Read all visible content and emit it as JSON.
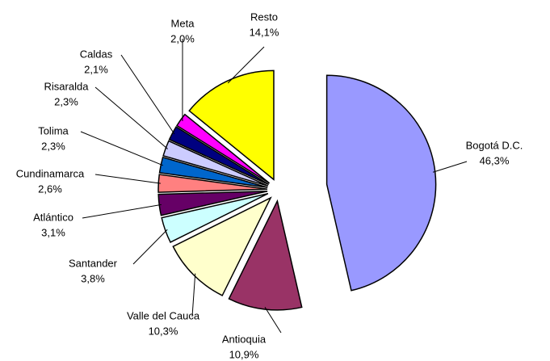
{
  "chart_data": {
    "type": "pie",
    "categories": [
      "Bogotá D.C.",
      "Antioquia",
      "Valle del Cauca",
      "Santander",
      "Atlántico",
      "Cundinamarca",
      "Tolima",
      "Risaralda",
      "Caldas",
      "Meta",
      "Resto"
    ],
    "values": [
      46.3,
      10.9,
      10.3,
      3.8,
      3.1,
      2.6,
      2.3,
      2.3,
      2.1,
      2.0,
      14.1
    ],
    "value_labels": [
      "46,3%",
      "10,9%",
      "10,3%",
      "3,8%",
      "3,1%",
      "2,6%",
      "2,3%",
      "2,3%",
      "2,1%",
      "2,0%",
      "14,1%"
    ],
    "colors": [
      "#9999ff",
      "#993366",
      "#ffffcc",
      "#ccffff",
      "#660066",
      "#ff8080",
      "#0066cc",
      "#ccccff",
      "#000080",
      "#ff00ff",
      "#ffff00"
    ]
  }
}
